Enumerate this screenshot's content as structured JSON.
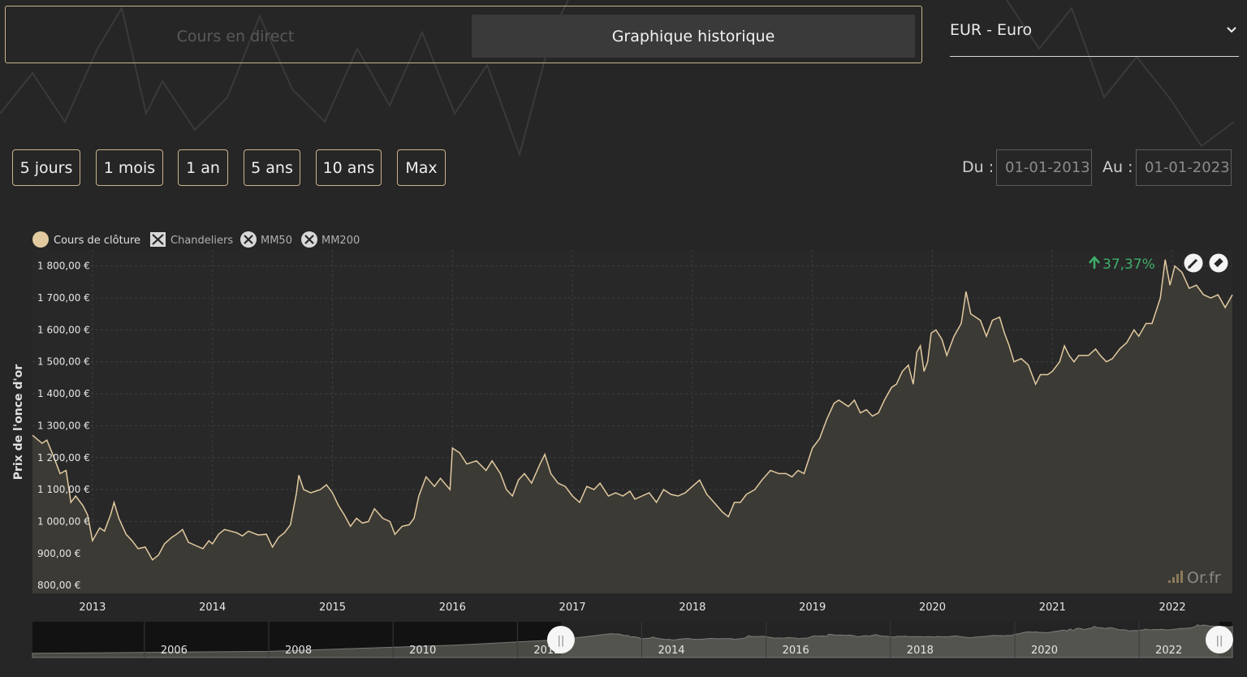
{
  "tabs": {
    "live": "Cours en direct",
    "history": "Graphique historique"
  },
  "currency": {
    "selected": "EUR - Euro"
  },
  "ranges": [
    "5 jours",
    "1 mois",
    "1 an",
    "5 ans",
    "10 ans",
    "Max"
  ],
  "dates": {
    "from_label": "Du :",
    "from_value": "01-01-2013",
    "to_label": "Au :",
    "to_value": "01-01-2023"
  },
  "colors": {
    "accent": "#c9b48a",
    "line": "#e2caa0",
    "gain": "#3fae6a"
  },
  "brand": "Or.fr",
  "chart_data": {
    "type": "area",
    "ylabel": "Prix de l'once d'or",
    "legend": [
      {
        "name": "Cours de clôture",
        "icon": "filled-dot",
        "active": true
      },
      {
        "name": "Chandeliers",
        "icon": "candlestick-box",
        "active": false
      },
      {
        "name": "MM50",
        "icon": "x-circle",
        "active": false
      },
      {
        "name": "MM200",
        "icon": "x-circle",
        "active": false
      }
    ],
    "legend_position": "top-left",
    "change_label": "37,37%",
    "ylim": [
      775,
      1850
    ],
    "xlim": [
      2012.5,
      2022.5
    ],
    "yticks": [
      {
        "value": 800,
        "label": "800,00 €"
      },
      {
        "value": 900,
        "label": "900,00 €"
      },
      {
        "value": 1000,
        "label": "1 000,00 €"
      },
      {
        "value": 1100,
        "label": "1 100,00 €"
      },
      {
        "value": 1200,
        "label": "1 200,00 €"
      },
      {
        "value": 1300,
        "label": "1 300,00 €"
      },
      {
        "value": 1400,
        "label": "1 400,00 €"
      },
      {
        "value": 1500,
        "label": "1 500,00 €"
      },
      {
        "value": 1600,
        "label": "1 600,00 €"
      },
      {
        "value": 1700,
        "label": "1 700,00 €"
      },
      {
        "value": 1800,
        "label": "1 800,00 €"
      }
    ],
    "xticks": [
      {
        "value": 2013,
        "label": "2013"
      },
      {
        "value": 2014,
        "label": "2014"
      },
      {
        "value": 2015,
        "label": "2015"
      },
      {
        "value": 2016,
        "label": "2016"
      },
      {
        "value": 2017,
        "label": "2017"
      },
      {
        "value": 2018,
        "label": "2018"
      },
      {
        "value": 2019,
        "label": "2019"
      },
      {
        "value": 2020,
        "label": "2020"
      },
      {
        "value": 2021,
        "label": "2021"
      },
      {
        "value": 2022,
        "label": "2022"
      }
    ],
    "grid": true,
    "series": [
      {
        "name": "Cours de clôture",
        "points": [
          [
            2012.5,
            1270
          ],
          [
            2012.58,
            1245
          ],
          [
            2012.62,
            1255
          ],
          [
            2012.68,
            1200
          ],
          [
            2012.73,
            1150
          ],
          [
            2012.78,
            1160
          ],
          [
            2012.82,
            1060
          ],
          [
            2012.86,
            1080
          ],
          [
            2012.92,
            1050
          ],
          [
            2012.96,
            1020
          ],
          [
            2013.0,
            940
          ],
          [
            2013.06,
            980
          ],
          [
            2013.1,
            970
          ],
          [
            2013.15,
            1020
          ],
          [
            2013.18,
            1060
          ],
          [
            2013.22,
            1010
          ],
          [
            2013.28,
            960
          ],
          [
            2013.33,
            940
          ],
          [
            2013.38,
            915
          ],
          [
            2013.44,
            920
          ],
          [
            2013.5,
            880
          ],
          [
            2013.55,
            895
          ],
          [
            2013.6,
            930
          ],
          [
            2013.66,
            950
          ],
          [
            2013.7,
            960
          ],
          [
            2013.75,
            975
          ],
          [
            2013.8,
            935
          ],
          [
            2013.86,
            925
          ],
          [
            2013.92,
            915
          ],
          [
            2013.97,
            940
          ],
          [
            2014.0,
            930
          ],
          [
            2014.05,
            960
          ],
          [
            2014.1,
            975
          ],
          [
            2014.2,
            965
          ],
          [
            2014.25,
            955
          ],
          [
            2014.3,
            970
          ],
          [
            2014.38,
            958
          ],
          [
            2014.45,
            960
          ],
          [
            2014.5,
            920
          ],
          [
            2014.55,
            950
          ],
          [
            2014.6,
            965
          ],
          [
            2014.65,
            990
          ],
          [
            2014.7,
            1090
          ],
          [
            2014.72,
            1145
          ],
          [
            2014.76,
            1100
          ],
          [
            2014.82,
            1090
          ],
          [
            2014.9,
            1100
          ],
          [
            2014.95,
            1115
          ],
          [
            2015.0,
            1090
          ],
          [
            2015.05,
            1050
          ],
          [
            2015.1,
            1020
          ],
          [
            2015.15,
            985
          ],
          [
            2015.2,
            1010
          ],
          [
            2015.25,
            995
          ],
          [
            2015.3,
            1000
          ],
          [
            2015.35,
            1040
          ],
          [
            2015.42,
            1010
          ],
          [
            2015.48,
            1000
          ],
          [
            2015.52,
            960
          ],
          [
            2015.58,
            985
          ],
          [
            2015.64,
            990
          ],
          [
            2015.68,
            1010
          ],
          [
            2015.72,
            1080
          ],
          [
            2015.78,
            1140
          ],
          [
            2015.85,
            1110
          ],
          [
            2015.9,
            1135
          ],
          [
            2015.98,
            1100
          ],
          [
            2016.0,
            1230
          ],
          [
            2016.06,
            1215
          ],
          [
            2016.12,
            1180
          ],
          [
            2016.2,
            1190
          ],
          [
            2016.28,
            1160
          ],
          [
            2016.33,
            1190
          ],
          [
            2016.4,
            1150
          ],
          [
            2016.45,
            1100
          ],
          [
            2016.5,
            1080
          ],
          [
            2016.55,
            1130
          ],
          [
            2016.6,
            1150
          ],
          [
            2016.66,
            1120
          ],
          [
            2016.73,
            1180
          ],
          [
            2016.77,
            1210
          ],
          [
            2016.82,
            1150
          ],
          [
            2016.88,
            1120
          ],
          [
            2016.94,
            1110
          ],
          [
            2017.0,
            1080
          ],
          [
            2017.06,
            1060
          ],
          [
            2017.12,
            1110
          ],
          [
            2017.18,
            1100
          ],
          [
            2017.23,
            1120
          ],
          [
            2017.3,
            1080
          ],
          [
            2017.36,
            1090
          ],
          [
            2017.42,
            1080
          ],
          [
            2017.48,
            1095
          ],
          [
            2017.52,
            1070
          ],
          [
            2017.58,
            1080
          ],
          [
            2017.64,
            1090
          ],
          [
            2017.7,
            1060
          ],
          [
            2017.76,
            1100
          ],
          [
            2017.82,
            1085
          ],
          [
            2017.88,
            1080
          ],
          [
            2017.94,
            1090
          ],
          [
            2018.0,
            1110
          ],
          [
            2018.06,
            1130
          ],
          [
            2018.12,
            1085
          ],
          [
            2018.18,
            1060
          ],
          [
            2018.25,
            1030
          ],
          [
            2018.3,
            1015
          ],
          [
            2018.35,
            1060
          ],
          [
            2018.4,
            1060
          ],
          [
            2018.45,
            1085
          ],
          [
            2018.52,
            1100
          ],
          [
            2018.58,
            1130
          ],
          [
            2018.65,
            1160
          ],
          [
            2018.72,
            1150
          ],
          [
            2018.78,
            1150
          ],
          [
            2018.83,
            1140
          ],
          [
            2018.88,
            1160
          ],
          [
            2018.93,
            1150
          ],
          [
            2019.0,
            1230
          ],
          [
            2019.06,
            1260
          ],
          [
            2019.12,
            1320
          ],
          [
            2019.18,
            1370
          ],
          [
            2019.22,
            1380
          ],
          [
            2019.3,
            1360
          ],
          [
            2019.35,
            1380
          ],
          [
            2019.4,
            1340
          ],
          [
            2019.45,
            1350
          ],
          [
            2019.5,
            1330
          ],
          [
            2019.55,
            1340
          ],
          [
            2019.6,
            1380
          ],
          [
            2019.66,
            1420
          ],
          [
            2019.7,
            1430
          ],
          [
            2019.75,
            1470
          ],
          [
            2019.8,
            1490
          ],
          [
            2019.84,
            1430
          ],
          [
            2019.87,
            1530
          ],
          [
            2019.9,
            1550
          ],
          [
            2019.93,
            1470
          ],
          [
            2019.96,
            1500
          ],
          [
            2019.99,
            1590
          ],
          [
            2020.03,
            1600
          ],
          [
            2020.08,
            1570
          ],
          [
            2020.12,
            1520
          ],
          [
            2020.18,
            1580
          ],
          [
            2020.24,
            1620
          ],
          [
            2020.28,
            1720
          ],
          [
            2020.32,
            1650
          ],
          [
            2020.36,
            1640
          ],
          [
            2020.4,
            1630
          ],
          [
            2020.45,
            1580
          ],
          [
            2020.5,
            1630
          ],
          [
            2020.56,
            1640
          ],
          [
            2020.6,
            1590
          ],
          [
            2020.64,
            1550
          ],
          [
            2020.68,
            1500
          ],
          [
            2020.74,
            1510
          ],
          [
            2020.8,
            1490
          ],
          [
            2020.86,
            1430
          ],
          [
            2020.9,
            1460
          ],
          [
            2020.96,
            1460
          ],
          [
            2021.0,
            1470
          ],
          [
            2021.06,
            1500
          ],
          [
            2021.1,
            1550
          ],
          [
            2021.14,
            1520
          ],
          [
            2021.18,
            1500
          ],
          [
            2021.22,
            1520
          ],
          [
            2021.3,
            1520
          ],
          [
            2021.36,
            1540
          ],
          [
            2021.4,
            1520
          ],
          [
            2021.45,
            1500
          ],
          [
            2021.5,
            1510
          ],
          [
            2021.56,
            1540
          ],
          [
            2021.62,
            1560
          ],
          [
            2021.68,
            1600
          ],
          [
            2021.72,
            1580
          ],
          [
            2021.78,
            1620
          ],
          [
            2021.83,
            1620
          ],
          [
            2021.9,
            1700
          ],
          [
            2021.94,
            1820
          ],
          [
            2021.98,
            1740
          ],
          [
            2022.02,
            1800
          ],
          [
            2022.08,
            1780
          ],
          [
            2022.14,
            1730
          ],
          [
            2022.2,
            1740
          ],
          [
            2022.26,
            1710
          ],
          [
            2022.32,
            1700
          ],
          [
            2022.38,
            1710
          ],
          [
            2022.44,
            1670
          ],
          [
            2022.5,
            1710
          ]
        ]
      }
    ],
    "navigator": {
      "xticks": [
        {
          "value": 2005,
          "label": "2006"
        },
        {
          "value": 2007,
          "label": "2008"
        },
        {
          "value": 2009,
          "label": "2010"
        },
        {
          "value": 2011,
          "label": "2012"
        },
        {
          "value": 2013,
          "label": "2014"
        },
        {
          "value": 2015,
          "label": "2016"
        },
        {
          "value": 2017,
          "label": "2018"
        },
        {
          "value": 2019,
          "label": "2020"
        },
        {
          "value": 2021,
          "label": "2022"
        }
      ],
      "xlim": [
        2003.2,
        2022.5
      ],
      "range": [
        2011.7,
        2022.5
      ],
      "handle_glyph": "||"
    }
  }
}
